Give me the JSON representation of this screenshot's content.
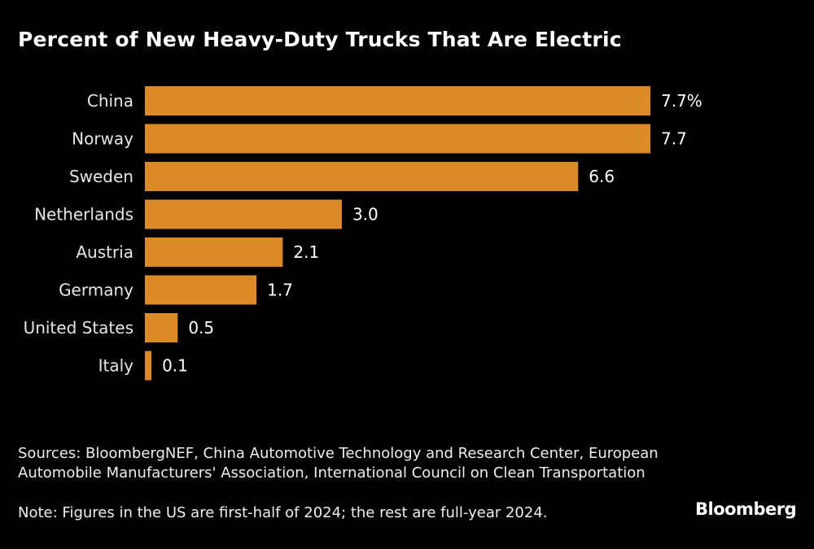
{
  "chart_data": {
    "type": "bar",
    "orientation": "horizontal",
    "title": "Percent of New Heavy-Duty Trucks That Are Electric",
    "categories": [
      "China",
      "Norway",
      "Sweden",
      "Netherlands",
      "Austria",
      "Germany",
      "United States",
      "Italy"
    ],
    "values": [
      7.7,
      7.7,
      6.6,
      3.0,
      2.1,
      1.7,
      0.5,
      0.1
    ],
    "data_labels": [
      "7.7%",
      "7.7",
      "6.6",
      "3.0",
      "2.1",
      "1.7",
      "0.5",
      "0.1"
    ],
    "xlim": [
      0,
      7.7
    ],
    "grid": false,
    "bar_color": "#DC8A26",
    "background": "#000000"
  },
  "sources": "Sources: BloombergNEF, China Automotive Technology and Research Center, European Automobile Manufacturers' Association, International Council on Clean Transportation",
  "note": "Note: Figures in the US are first-half of 2024; the rest are full-year 2024.",
  "logo": "Bloomberg"
}
